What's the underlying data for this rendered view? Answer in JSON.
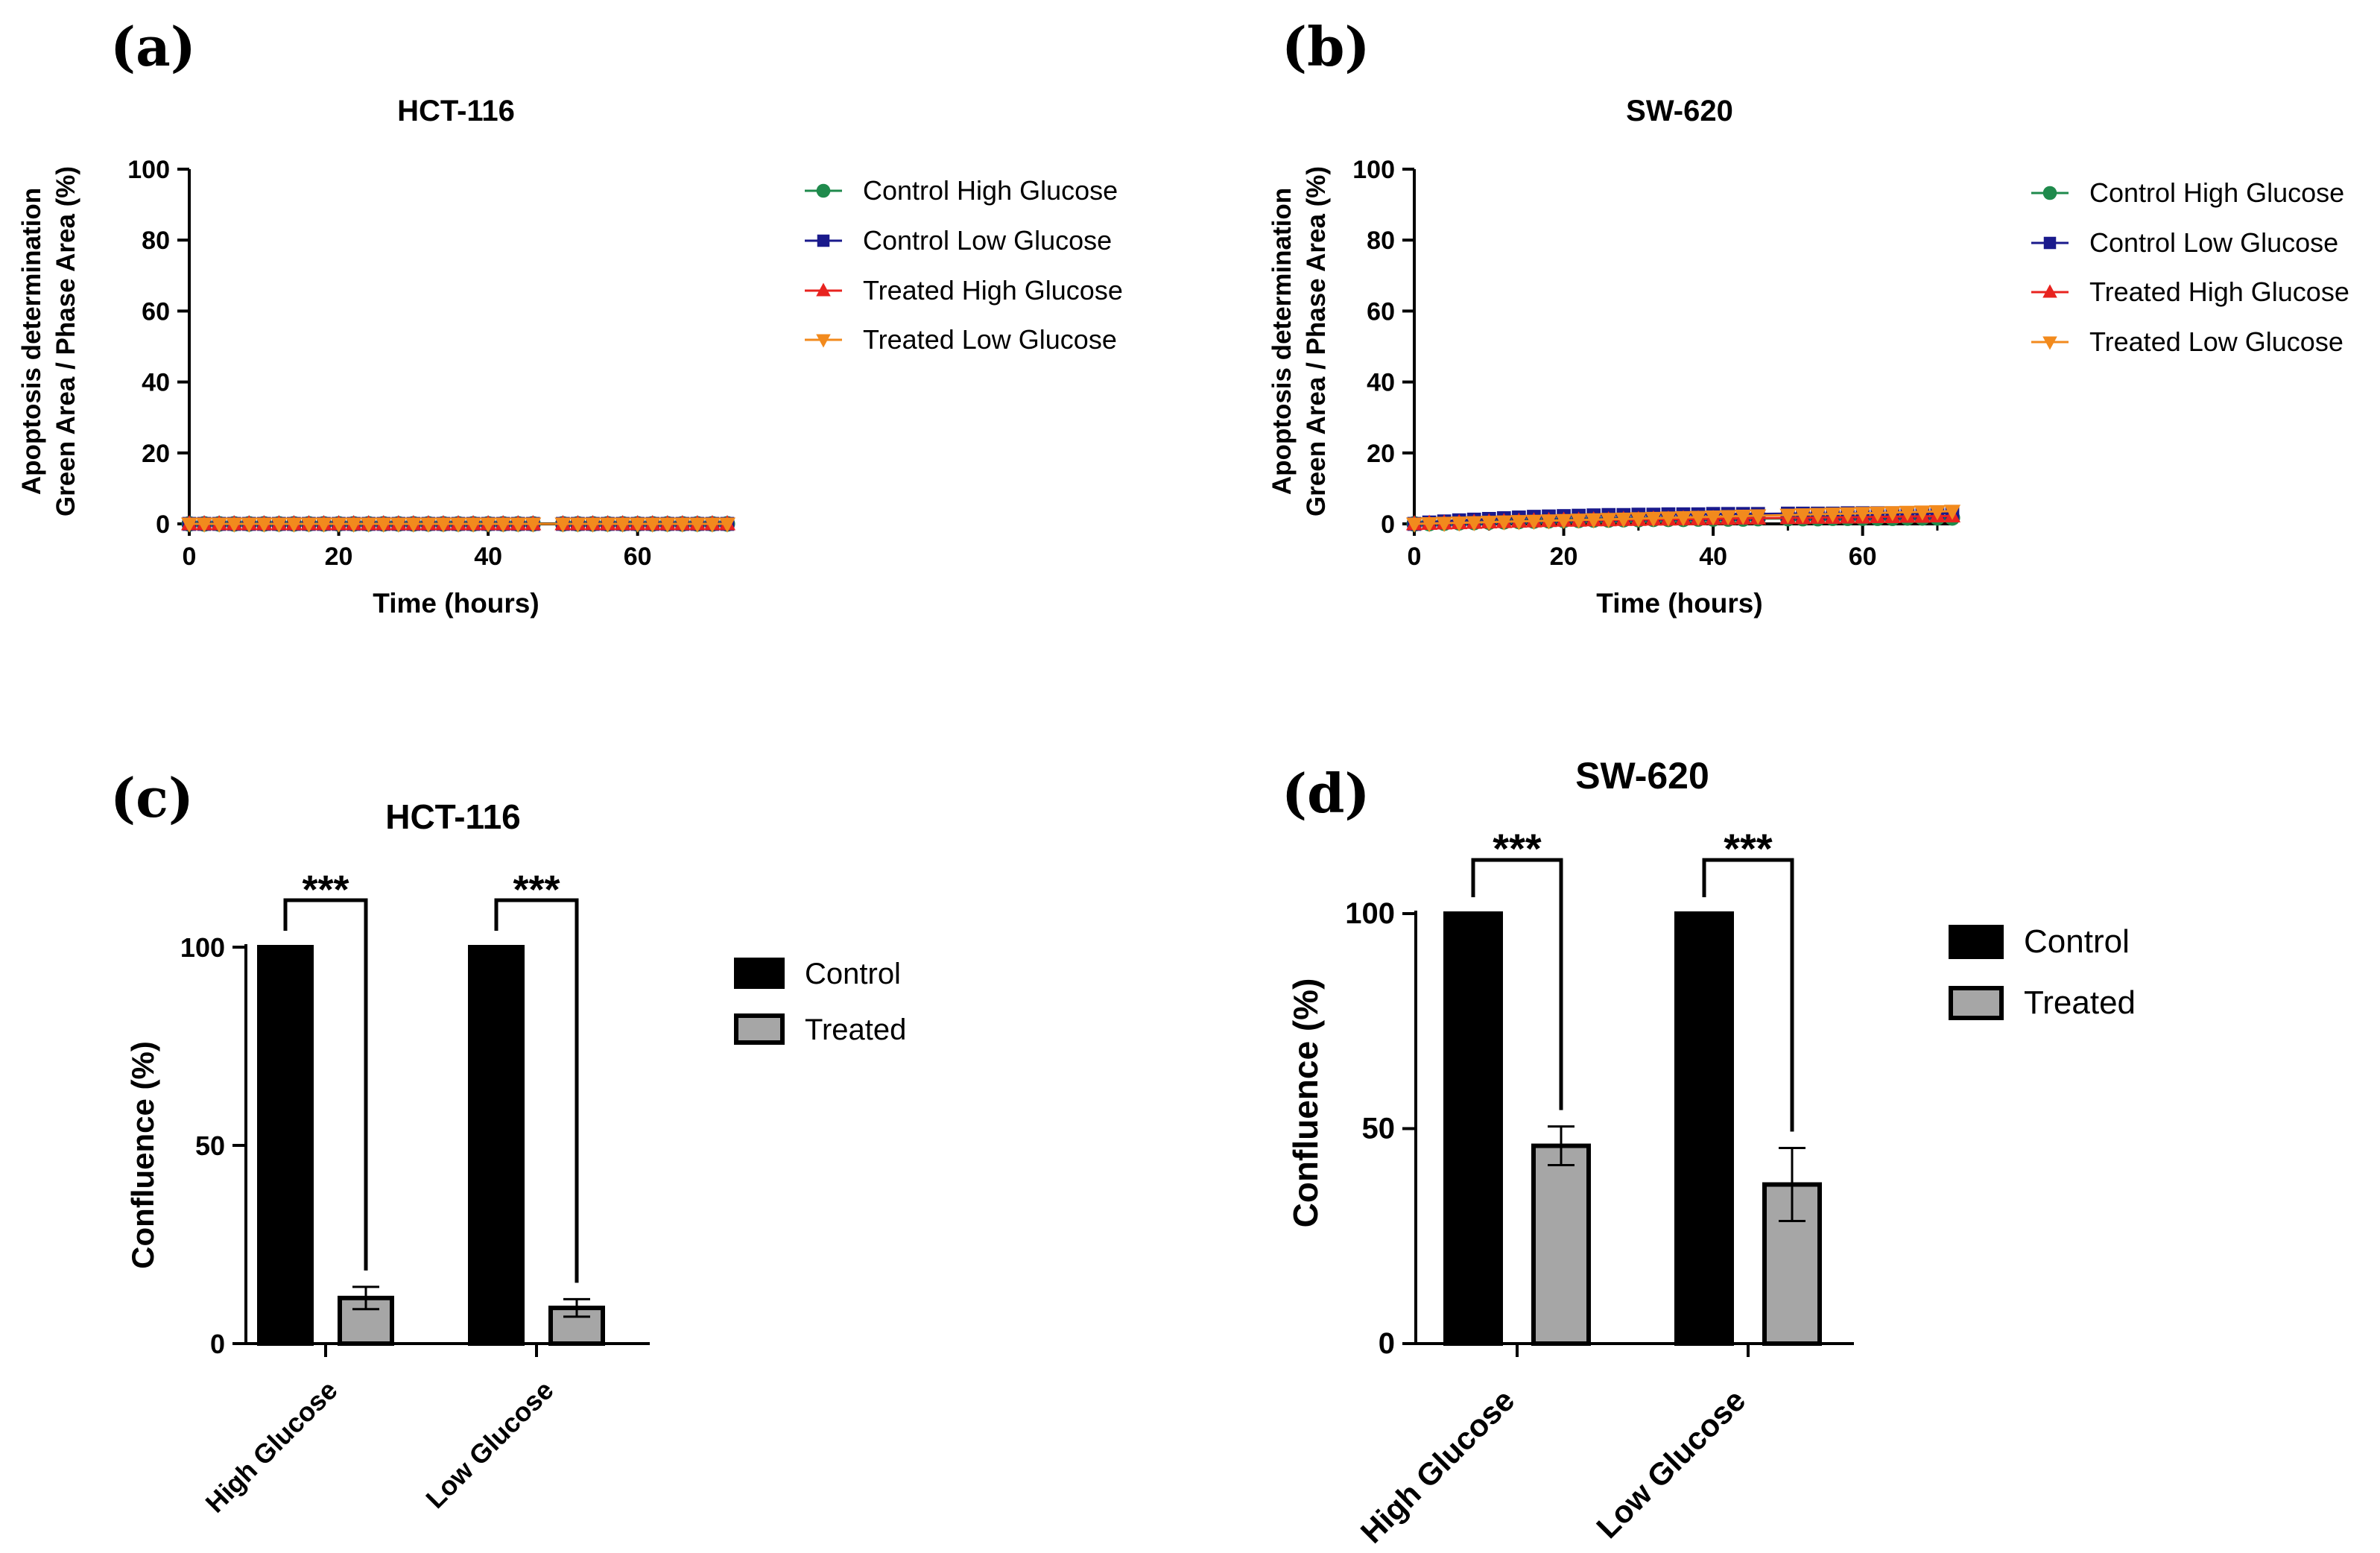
{
  "chart_data": [
    {
      "panel": "(a)",
      "type": "line",
      "title": "HCT-116",
      "xlabel": "Time (hours)",
      "ylabel": [
        "Apoptosis determination",
        "Green Area / Phase Area (%)"
      ],
      "xlim": [
        0,
        72
      ],
      "ylim": [
        0,
        100
      ],
      "xticks": [
        0,
        20,
        40,
        60
      ],
      "yticks": [
        0,
        20,
        40,
        60,
        80,
        100
      ],
      "x": [
        0,
        2,
        4,
        6,
        8,
        10,
        12,
        14,
        16,
        18,
        20,
        22,
        24,
        26,
        28,
        30,
        32,
        34,
        36,
        38,
        40,
        42,
        44,
        46,
        50,
        52,
        54,
        56,
        58,
        60,
        62,
        64,
        66,
        68,
        70,
        72
      ],
      "series": [
        {
          "name": "Control High Glucose",
          "color": "#1f8a4c",
          "marker": "circle",
          "values": [
            0,
            0,
            0,
            0,
            0,
            0,
            0,
            0,
            0,
            0,
            0,
            0,
            0,
            0,
            0,
            0,
            0,
            0,
            0,
            0,
            0,
            0,
            0,
            0,
            0,
            0,
            0,
            0,
            0,
            0,
            0,
            0,
            0,
            0,
            0,
            0
          ]
        },
        {
          "name": "Control Low Glucose",
          "color": "#1a1a8c",
          "marker": "square",
          "values": [
            0,
            0,
            0,
            0,
            0,
            0,
            0,
            0,
            0,
            0,
            0,
            0,
            0,
            0,
            0,
            0,
            0,
            0,
            0,
            0,
            0,
            0,
            0,
            0,
            0,
            0,
            0,
            0,
            0,
            0,
            0,
            0,
            0,
            0,
            0,
            0
          ]
        },
        {
          "name": "Treated High Glucose",
          "color": "#e8231f",
          "marker": "triangle-up",
          "values": [
            0,
            0,
            0,
            0,
            0,
            0,
            0,
            0,
            0,
            0,
            0,
            0,
            0,
            0,
            0,
            0,
            0,
            0,
            0,
            0,
            0,
            0,
            0,
            0,
            0,
            0,
            0,
            0,
            0,
            0,
            0,
            0,
            0,
            0,
            0,
            0
          ]
        },
        {
          "name": "Treated Low Glucose",
          "color": "#f28a1d",
          "marker": "triangle-down",
          "values": [
            0,
            0,
            0,
            0,
            0,
            0,
            0,
            0,
            0,
            0,
            0,
            0,
            0,
            0,
            0,
            0,
            0,
            0,
            0,
            0,
            0,
            0,
            0,
            0,
            0,
            0,
            0,
            0,
            0,
            0,
            0,
            0,
            0,
            0,
            0,
            0
          ]
        }
      ],
      "legend_position": "right"
    },
    {
      "panel": "(b)",
      "type": "line",
      "title": "SW-620",
      "xlabel": "Time (hours)",
      "ylabel": [
        "Apoptosis determination",
        "Green Area / Phase Area (%)"
      ],
      "xlim": [
        0,
        72
      ],
      "ylim": [
        0,
        100
      ],
      "xticks": [
        0,
        20,
        40,
        60
      ],
      "yticks": [
        0,
        20,
        40,
        60,
        80,
        100
      ],
      "x": [
        0,
        2,
        4,
        6,
        8,
        10,
        12,
        14,
        16,
        18,
        20,
        22,
        24,
        26,
        28,
        30,
        32,
        34,
        36,
        38,
        40,
        42,
        44,
        46,
        50,
        52,
        54,
        56,
        58,
        60,
        62,
        64,
        66,
        68,
        70,
        72
      ],
      "series": [
        {
          "name": "Control High Glucose",
          "color": "#1f8a4c",
          "marker": "circle",
          "values": [
            0,
            0.1,
            0.2,
            0.3,
            0.4,
            0.5,
            0.6,
            0.7,
            0.8,
            0.9,
            1.0,
            1.0,
            1.1,
            1.1,
            1.2,
            1.2,
            1.3,
            1.3,
            1.3,
            1.4,
            1.4,
            1.4,
            1.4,
            1.5,
            1.5,
            1.5,
            1.5,
            1.6,
            1.6,
            1.6,
            1.6,
            1.6,
            1.7,
            1.7,
            1.7,
            1.7
          ]
        },
        {
          "name": "Control Low Glucose",
          "color": "#1a1a8c",
          "marker": "square",
          "values": [
            0,
            0.4,
            0.7,
            1.0,
            1.2,
            1.4,
            1.6,
            1.8,
            2.0,
            2.1,
            2.2,
            2.3,
            2.4,
            2.5,
            2.5,
            2.6,
            2.6,
            2.7,
            2.7,
            2.7,
            2.8,
            2.8,
            2.8,
            2.8,
            2.9,
            2.9,
            2.9,
            2.9,
            3.0,
            3.0,
            3.0,
            3.0,
            3.0,
            3.0,
            3.0,
            3.0
          ]
        },
        {
          "name": "Treated High Glucose",
          "color": "#e8231f",
          "marker": "triangle-up",
          "values": [
            0,
            0.1,
            0.2,
            0.3,
            0.4,
            0.5,
            0.6,
            0.7,
            0.8,
            0.9,
            1.0,
            1.0,
            1.1,
            1.1,
            1.2,
            1.2,
            1.3,
            1.3,
            1.4,
            1.4,
            1.5,
            1.5,
            1.6,
            1.6,
            1.7,
            1.7,
            1.8,
            1.8,
            1.9,
            1.9,
            2.0,
            2.0,
            2.1,
            2.1,
            2.2,
            2.2
          ]
        },
        {
          "name": "Treated Low Glucose",
          "color": "#f28a1d",
          "marker": "triangle-down",
          "values": [
            0,
            0.1,
            0.2,
            0.3,
            0.4,
            0.5,
            0.6,
            0.7,
            0.8,
            0.9,
            1.0,
            1.1,
            1.2,
            1.3,
            1.4,
            1.5,
            1.6,
            1.7,
            1.8,
            1.9,
            2.0,
            2.1,
            2.2,
            2.3,
            2.5,
            2.6,
            2.7,
            2.8,
            2.9,
            3.0,
            3.1,
            3.2,
            3.3,
            3.4,
            3.5,
            3.6
          ]
        }
      ],
      "legend_position": "right"
    },
    {
      "panel": "(c)",
      "type": "bar",
      "title": "HCT-116",
      "ylabel": "Confluence (%)",
      "ylim": [
        0,
        100
      ],
      "yticks": [
        0,
        50,
        100
      ],
      "categories": [
        "High Glucose",
        "Low Glucose"
      ],
      "series": [
        {
          "name": "Control",
          "color": "#000000",
          "values": [
            100,
            100
          ],
          "errors": [
            0,
            0
          ]
        },
        {
          "name": "Treated",
          "color": "#a6a6a6",
          "values": [
            11.5,
            9
          ],
          "errors": [
            2.8,
            2.2
          ]
        }
      ],
      "significance": [
        "***",
        "***"
      ],
      "legend_position": "right"
    },
    {
      "panel": "(d)",
      "type": "bar",
      "title": "SW-620",
      "ylabel": "Confluence (%)",
      "ylim": [
        0,
        100
      ],
      "yticks": [
        0,
        50,
        100
      ],
      "categories": [
        "High Glucose",
        "Low Glucose"
      ],
      "series": [
        {
          "name": "Control",
          "color": "#000000",
          "values": [
            100,
            100
          ],
          "errors": [
            0,
            0
          ]
        },
        {
          "name": "Treated",
          "color": "#a6a6a6",
          "values": [
            46,
            37
          ],
          "errors": [
            4.5,
            8.5
          ]
        }
      ],
      "significance": [
        "***",
        "***"
      ],
      "legend_position": "right"
    }
  ]
}
